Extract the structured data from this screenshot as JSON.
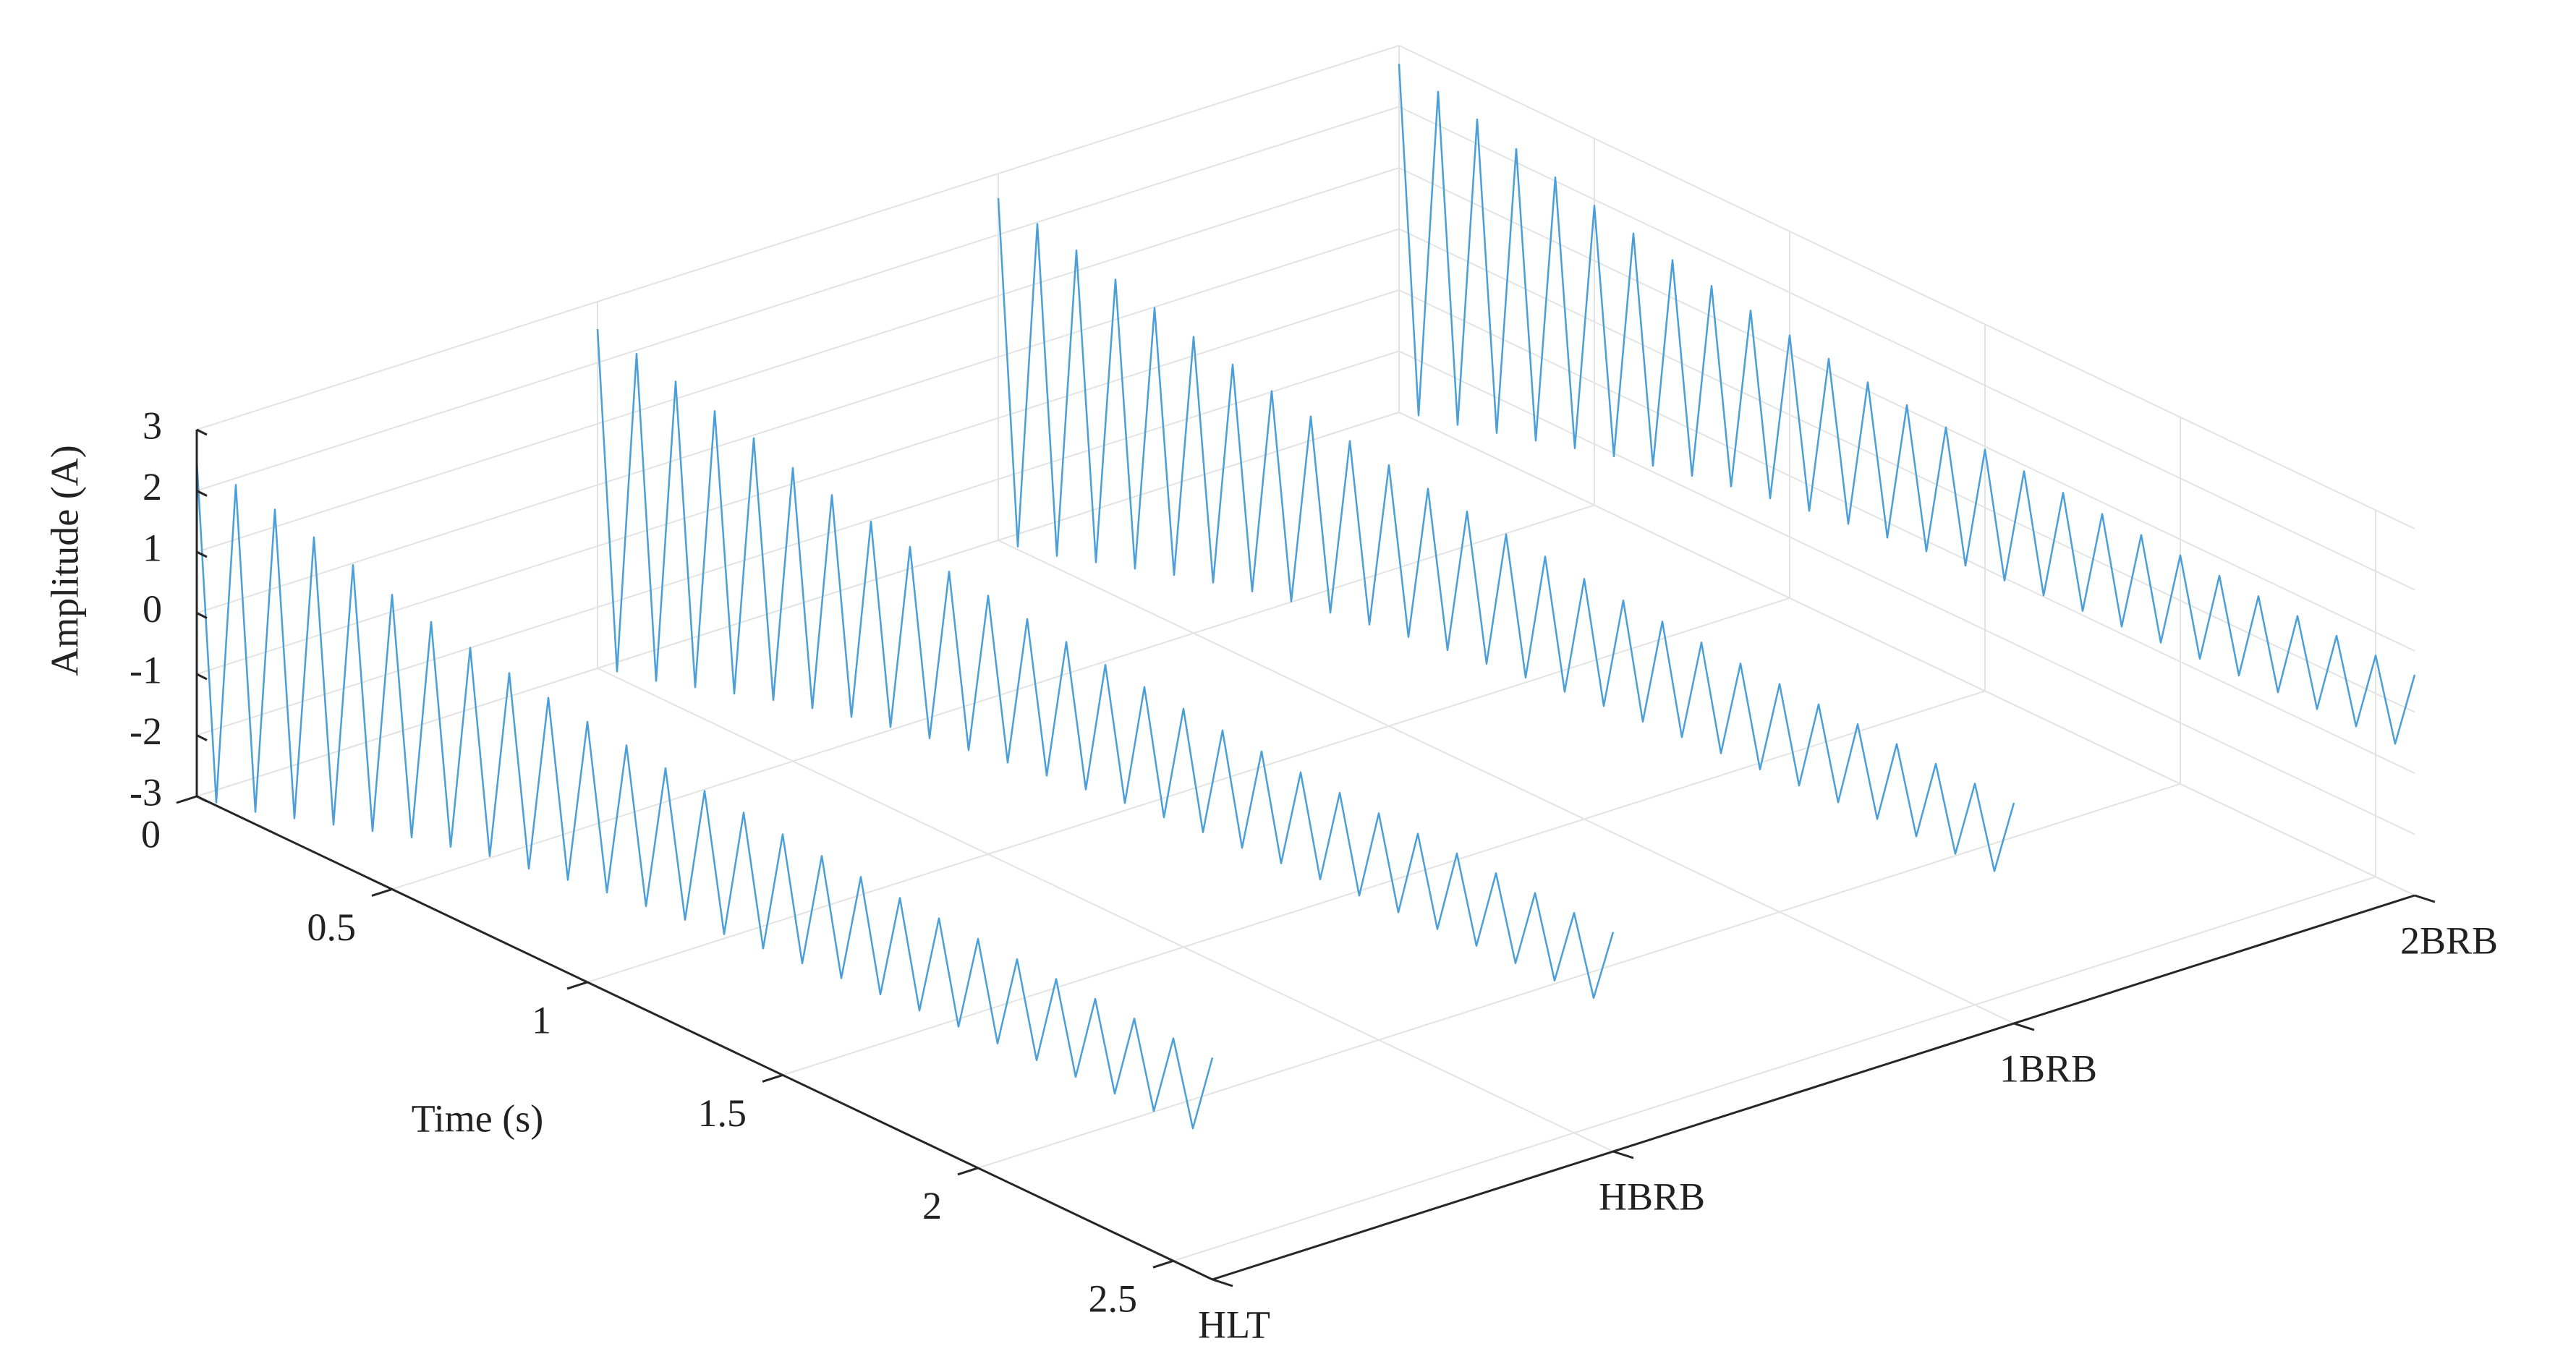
{
  "chart_data": {
    "type": "waterfall3d",
    "xlabel": "Time (s)",
    "zlabel": "Amplitude (A)",
    "categories": [
      "HLT",
      "HBRB",
      "1BRB",
      "2BRB"
    ],
    "xlim": [
      0,
      2.6
    ],
    "xticks": [
      0,
      0.5,
      1,
      1.5,
      2,
      2.5
    ],
    "zlim": [
      -3,
      3
    ],
    "zticks": [
      -3,
      -2,
      -1,
      0,
      1,
      2,
      3
    ],
    "grid": true,
    "x": [
      0,
      0.05,
      0.1,
      0.15,
      0.2,
      0.25,
      0.3,
      0.35,
      0.4,
      0.45,
      0.5,
      0.55,
      0.6,
      0.65,
      0.7,
      0.75,
      0.8,
      0.85,
      0.9,
      0.95,
      1,
      1.05,
      1.1,
      1.15,
      1.2,
      1.25,
      1.3,
      1.35,
      1.4,
      1.45,
      1.5,
      1.55,
      1.6,
      1.65,
      1.7,
      1.75,
      1.8,
      1.85,
      1.9,
      1.95,
      2,
      2.05,
      2.1,
      2.15,
      2.2,
      2.25,
      2.3,
      2.35,
      2.4,
      2.45,
      2.5,
      2.55,
      2.6
    ],
    "series": [
      {
        "color": "#4a9fd8",
        "values": [
          2.5,
          -2.95,
          2.4,
          -2.8,
          2.3,
          -2.6,
          2.15,
          -2.4,
          2.0,
          -2.2,
          1.82,
          -2.0,
          1.68,
          -1.85,
          1.56,
          -1.7,
          1.45,
          -1.6,
          1.35,
          -1.48,
          1.26,
          -1.38,
          1.18,
          -1.3,
          1.11,
          -1.22,
          1.04,
          -1.15,
          0.99,
          -1.08,
          0.94,
          -1.02,
          0.89,
          -0.96,
          0.85,
          -0.92,
          0.81,
          -0.88,
          0.78,
          -0.84,
          0.75,
          -0.81,
          0.72,
          -0.78,
          0.7,
          -0.75,
          0.68,
          -0.72,
          0.66,
          -0.7,
          0.64,
          -0.68,
          0.63
        ]
      },
      {
        "color": "#4a9fd8",
        "values": [
          2.55,
          -2.9,
          2.45,
          -2.75,
          2.3,
          -2.55,
          2.12,
          -2.35,
          1.98,
          -2.15,
          1.8,
          -1.98,
          1.66,
          -1.82,
          1.53,
          -1.68,
          1.42,
          -1.56,
          1.32,
          -1.45,
          1.23,
          -1.35,
          1.15,
          -1.26,
          1.08,
          -1.18,
          1.01,
          -1.1,
          0.95,
          -1.03,
          0.9,
          -0.97,
          0.85,
          -0.92,
          0.81,
          -0.87,
          0.77,
          -0.83,
          0.74,
          -0.79,
          0.71,
          -0.76,
          0.68,
          -0.73,
          0.66,
          -0.7,
          0.64,
          -0.68,
          0.62,
          -0.66,
          0.6,
          -0.64,
          0.59
        ]
      },
      {
        "color": "#4a9fd8",
        "values": [
          2.6,
          -2.95,
          2.48,
          -2.8,
          2.35,
          -2.6,
          2.18,
          -2.4,
          2.02,
          -2.2,
          1.85,
          -2.02,
          1.7,
          -1.86,
          1.57,
          -1.72,
          1.46,
          -1.6,
          1.36,
          -1.49,
          1.27,
          -1.39,
          1.19,
          -1.3,
          1.12,
          -1.22,
          1.05,
          -1.14,
          0.99,
          -1.07,
          0.93,
          -1.0,
          0.88,
          -0.95,
          0.84,
          -0.9,
          0.8,
          -0.86,
          0.76,
          -0.82,
          0.73,
          -0.78,
          0.7,
          -0.75,
          0.68,
          -0.72,
          0.66,
          -0.7,
          0.64,
          -0.68,
          0.62,
          -0.66,
          0.61
        ]
      },
      {
        "color": "#4a9fd8",
        "values": [
          2.7,
          -2.9,
          2.55,
          -2.75,
          2.4,
          -2.58,
          2.22,
          -2.4,
          2.06,
          -2.22,
          1.9,
          -2.05,
          1.75,
          -1.9,
          1.62,
          -1.76,
          1.5,
          -1.63,
          1.4,
          -1.52,
          1.3,
          -1.42,
          1.22,
          -1.33,
          1.14,
          -1.25,
          1.07,
          -1.17,
          1.01,
          -1.1,
          0.95,
          -1.04,
          0.9,
          -0.98,
          0.85,
          -0.93,
          0.81,
          -0.88,
          0.77,
          -0.84,
          0.74,
          -0.8,
          0.71,
          -0.77,
          0.68,
          -0.74,
          0.66,
          -0.71,
          0.64,
          -0.69,
          0.62,
          -0.67,
          0.61
        ]
      }
    ]
  }
}
